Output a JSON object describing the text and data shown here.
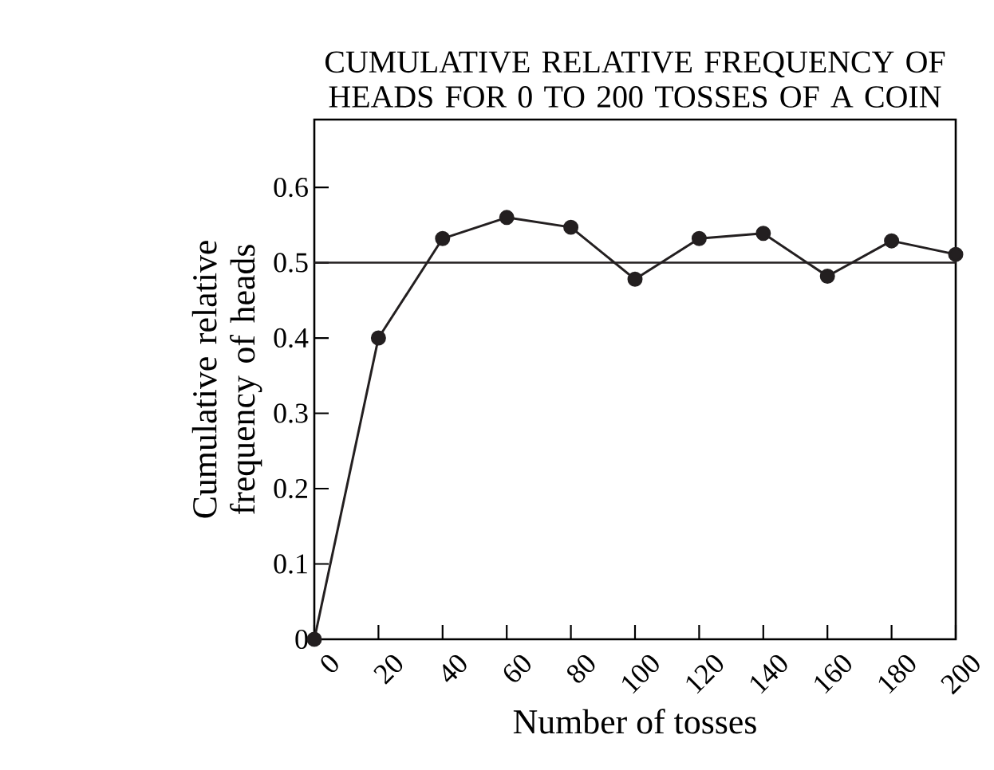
{
  "chart_data": {
    "type": "line",
    "title": "CUMULATIVE RELATIVE FREQUENCY OF HEADS FOR 0 TO 200 TOSSES OF A COIN",
    "xlabel": "Number of tosses",
    "ylabel": "Cumulative relative frequency of heads",
    "x": [
      0,
      20,
      40,
      60,
      80,
      100,
      120,
      140,
      160,
      180,
      200
    ],
    "series": [
      {
        "color": "#231f20",
        "values": [
          0,
          0.4,
          0.532,
          0.56,
          0.547,
          0.478,
          0.532,
          0.539,
          0.482,
          0.529,
          0.511
        ]
      }
    ],
    "xlim": [
      0,
      200
    ],
    "ylim": [
      0,
      0.69
    ],
    "xticks": [
      0,
      20,
      40,
      60,
      80,
      100,
      120,
      140,
      160,
      180,
      200
    ],
    "yticks": [
      0,
      0.1,
      0.2,
      0.3,
      0.4,
      0.5,
      0.6
    ],
    "ref_lines": [
      {
        "axis": "y",
        "value": 0.5,
        "color": "#231f20"
      }
    ],
    "marker": "circle",
    "line_style": "solid",
    "grid": false
  }
}
